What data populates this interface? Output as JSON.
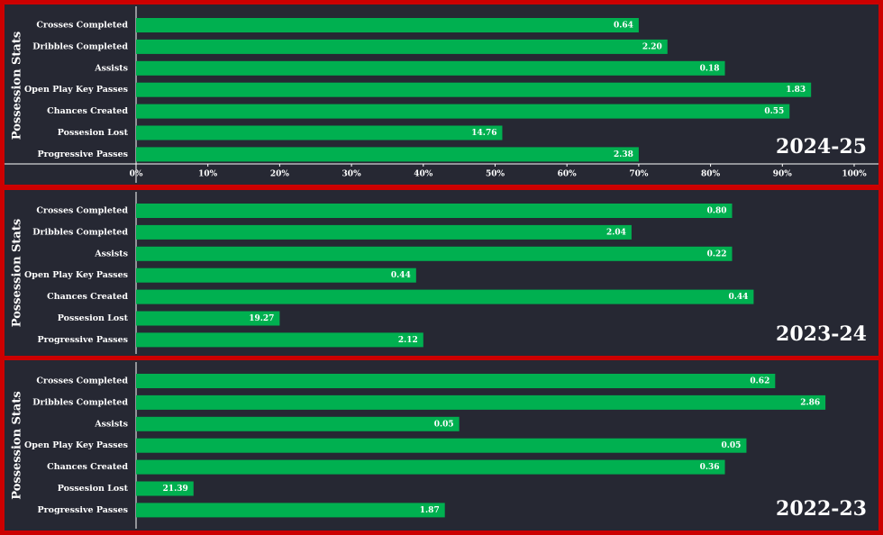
{
  "chart_data": [
    {
      "type": "bar",
      "orientation": "horizontal",
      "ylabel": "Possession Stats",
      "season": "2024-25",
      "categories": [
        "Crosses Completed",
        "Dribbles Completed",
        "Assists",
        "Open Play Key Passes",
        "Chances Created",
        "Possesion Lost",
        "Progressive Passes"
      ],
      "values": [
        70,
        74,
        82,
        94,
        91,
        51,
        70
      ],
      "bar_labels": [
        "0.64",
        "2.20",
        "0.18",
        "1.83",
        "0.55",
        "14.76",
        "2.38"
      ],
      "color": "#00b050",
      "xlim": [
        0,
        100
      ],
      "xticks": [
        {
          "value": 0,
          "label": "0%"
        },
        {
          "value": 10,
          "label": "10%"
        },
        {
          "value": 20,
          "label": "20%"
        },
        {
          "value": 30,
          "label": "30%"
        },
        {
          "value": 40,
          "label": "40%"
        },
        {
          "value": 50,
          "label": "50%"
        },
        {
          "value": 60,
          "label": "60%"
        },
        {
          "value": 70,
          "label": "70%"
        },
        {
          "value": 80,
          "label": "80%"
        },
        {
          "value": 90,
          "label": "90%"
        },
        {
          "value": 100,
          "label": "100%"
        }
      ]
    },
    {
      "type": "bar",
      "orientation": "horizontal",
      "ylabel": "Possession Stats",
      "season": "2023-24",
      "categories": [
        "Crosses Completed",
        "Dribbles Completed",
        "Assists",
        "Open Play Key Passes",
        "Chances Created",
        "Possesion Lost",
        "Progressive Passes"
      ],
      "values": [
        83,
        69,
        83,
        39,
        86,
        20,
        40
      ],
      "bar_labels": [
        "0.80",
        "2.04",
        "0.22",
        "0.44",
        "0.44",
        "19.27",
        "2.12"
      ],
      "color": "#00b050",
      "xlim": [
        0,
        100
      ]
    },
    {
      "type": "bar",
      "orientation": "horizontal",
      "ylabel": "Possession Stats",
      "season": "2022-23",
      "categories": [
        "Crosses Completed",
        "Dribbles Completed",
        "Assists",
        "Open Play Key Passes",
        "Chances Created",
        "Possesion Lost",
        "Progressive Passes"
      ],
      "values": [
        89,
        96,
        45,
        85,
        82,
        8,
        43
      ],
      "bar_labels": [
        "0.62",
        "2.86",
        "0.05",
        "0.05",
        "0.36",
        "21.39",
        "1.87"
      ],
      "color": "#00b050",
      "xlim": [
        0,
        100
      ]
    }
  ]
}
